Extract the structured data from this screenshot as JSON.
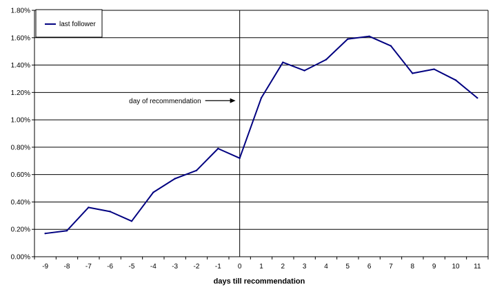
{
  "chart_data": {
    "type": "line",
    "xlabel": "days till recommendation",
    "ylabel": "",
    "x": [
      -9,
      -8,
      -7,
      -6,
      -5,
      -4,
      -3,
      -2,
      -1,
      0,
      1,
      2,
      3,
      4,
      5,
      6,
      7,
      8,
      9,
      10,
      11
    ],
    "y_tick_labels": [
      "0.00%",
      "0.20%",
      "0.40%",
      "0.60%",
      "0.80%",
      "1.00%",
      "1.20%",
      "1.40%",
      "1.60%",
      "1.80%"
    ],
    "ylim": [
      0,
      1.8
    ],
    "y_unit": "%",
    "grid": "horizontal",
    "legend_position": "top-left",
    "series": [
      {
        "name": "last follower",
        "color": "#000080",
        "values": [
          0.17,
          0.19,
          0.36,
          0.33,
          0.26,
          0.47,
          0.57,
          0.63,
          0.79,
          0.72,
          1.16,
          1.42,
          1.36,
          1.44,
          1.59,
          1.61,
          1.54,
          1.34,
          1.37,
          1.29,
          1.16
        ]
      }
    ],
    "annotations": [
      {
        "text": "day of recommendation",
        "x": 0,
        "y": 1.14,
        "arrow": "right"
      }
    ],
    "reference_line": {
      "x": 0
    }
  }
}
